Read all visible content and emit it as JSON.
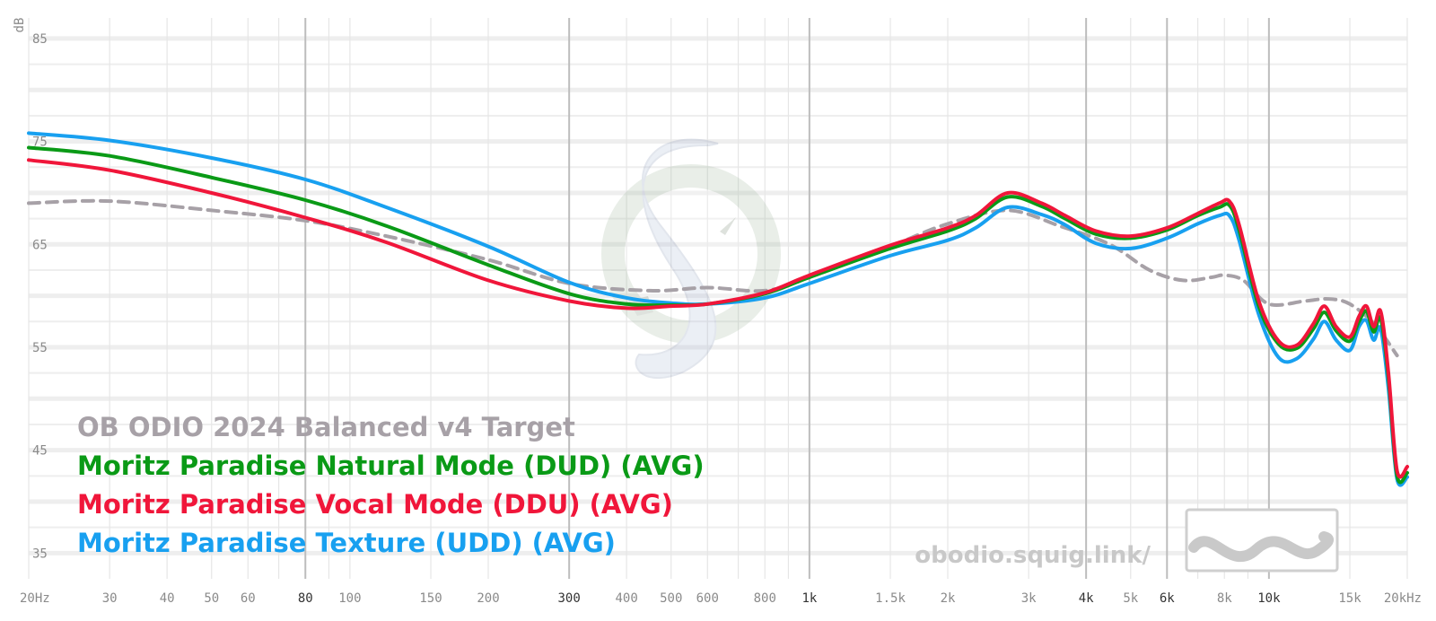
{
  "watermark": {
    "url": "obodio.squig.link/",
    "logo": "squiglink-wave-logo"
  },
  "colors": {
    "target": "#a7a1a7",
    "natural": "#0a9a16",
    "vocal": "#f0163a",
    "texture": "#18a0f0",
    "grid": "#e6e6e6",
    "grid_major": "#bdbdbd"
  },
  "chart_data": {
    "type": "line",
    "title": "",
    "xlabel": "",
    "ylabel": "dB",
    "x_scale": "log",
    "xlim": [
      20,
      20000
    ],
    "ylim": [
      32.5,
      87
    ],
    "grid": true,
    "legend_position": "bottom-left",
    "y_ticks": [
      85,
      75,
      65,
      55,
      45,
      35
    ],
    "x_ticks": [
      {
        "value": 20,
        "label": "20Hz",
        "strong": false
      },
      {
        "value": 30,
        "label": "30",
        "strong": false
      },
      {
        "value": 40,
        "label": "40",
        "strong": false
      },
      {
        "value": 50,
        "label": "50",
        "strong": false
      },
      {
        "value": 60,
        "label": "60",
        "strong": false
      },
      {
        "value": 80,
        "label": "80",
        "strong": true
      },
      {
        "value": 100,
        "label": "100",
        "strong": false
      },
      {
        "value": 150,
        "label": "150",
        "strong": false
      },
      {
        "value": 200,
        "label": "200",
        "strong": false
      },
      {
        "value": 300,
        "label": "300",
        "strong": true
      },
      {
        "value": 400,
        "label": "400",
        "strong": false
      },
      {
        "value": 500,
        "label": "500",
        "strong": false
      },
      {
        "value": 600,
        "label": "600",
        "strong": false
      },
      {
        "value": 800,
        "label": "800",
        "strong": false
      },
      {
        "value": 1000,
        "label": "1k",
        "strong": true
      },
      {
        "value": 1500,
        "label": "1.5k",
        "strong": false
      },
      {
        "value": 2000,
        "label": "2k",
        "strong": false
      },
      {
        "value": 3000,
        "label": "3k",
        "strong": false
      },
      {
        "value": 4000,
        "label": "4k",
        "strong": true
      },
      {
        "value": 5000,
        "label": "5k",
        "strong": false
      },
      {
        "value": 6000,
        "label": "6k",
        "strong": true
      },
      {
        "value": 8000,
        "label": "8k",
        "strong": false
      },
      {
        "value": 10000,
        "label": "10k",
        "strong": true
      },
      {
        "value": 15000,
        "label": "15k",
        "strong": false
      },
      {
        "value": 20000,
        "label": "20kHz",
        "strong": false
      }
    ],
    "series": [
      {
        "name": "OB ODIO 2024 Balanced v4 Target",
        "key": "target",
        "dashed": true,
        "x": [
          20,
          30,
          50,
          80,
          120,
          200,
          300,
          450,
          600,
          800,
          1000,
          1500,
          2000,
          2700,
          3500,
          4500,
          5500,
          6500,
          7500,
          8000,
          8800,
          10000,
          12000,
          13500,
          15000,
          17000,
          19000
        ],
        "y": [
          69.0,
          69.2,
          68.3,
          67.3,
          65.8,
          63.5,
          61.2,
          60.5,
          60.8,
          60.5,
          61.8,
          64.8,
          67.0,
          68.3,
          66.8,
          65.0,
          62.5,
          61.5,
          61.8,
          62.0,
          61.5,
          59.2,
          59.5,
          59.7,
          59.2,
          57.2,
          54.2
        ]
      },
      {
        "name": "Moritz Paradise Natural Mode (DUD) (AVG)",
        "key": "natural",
        "dashed": false,
        "x": [
          20,
          30,
          50,
          80,
          120,
          200,
          300,
          400,
          500,
          600,
          800,
          1000,
          1500,
          2000,
          2300,
          2700,
          3200,
          3600,
          4200,
          5000,
          6000,
          7000,
          7800,
          8200,
          8600,
          9500,
          10500,
          11500,
          12500,
          13200,
          14000,
          15000,
          15700,
          16300,
          16900,
          17500,
          18200,
          19000,
          20000
        ],
        "y": [
          74.4,
          73.6,
          71.5,
          69.3,
          66.8,
          63.0,
          60.2,
          59.2,
          59.1,
          59.2,
          60.2,
          61.8,
          64.6,
          66.3,
          67.5,
          69.6,
          68.7,
          67.5,
          66.0,
          65.6,
          66.4,
          67.8,
          68.6,
          68.8,
          66.5,
          59.0,
          55.3,
          54.9,
          56.8,
          58.4,
          56.6,
          55.6,
          57.5,
          58.5,
          56.5,
          57.8,
          52.0,
          42.5,
          42.8
        ]
      },
      {
        "name": "Moritz Paradise Vocal Mode (DDU) (AVG)",
        "key": "vocal",
        "dashed": false,
        "x": [
          20,
          30,
          50,
          80,
          120,
          200,
          300,
          400,
          500,
          600,
          800,
          1000,
          1500,
          2000,
          2300,
          2700,
          3200,
          3600,
          4200,
          5000,
          6000,
          7000,
          7800,
          8200,
          8600,
          9500,
          10500,
          11500,
          12500,
          13200,
          14000,
          15000,
          15700,
          16300,
          16900,
          17500,
          18200,
          19000,
          20000
        ],
        "y": [
          73.2,
          72.2,
          70.0,
          67.6,
          65.2,
          61.5,
          59.5,
          58.8,
          59.0,
          59.2,
          60.3,
          62.0,
          64.9,
          66.6,
          67.8,
          70.0,
          69.0,
          67.8,
          66.3,
          65.8,
          66.6,
          68.0,
          69.0,
          69.2,
          67.0,
          59.5,
          55.6,
          55.2,
          57.3,
          59.0,
          57.0,
          56.0,
          58.0,
          59.0,
          57.0,
          58.5,
          52.5,
          43.0,
          43.4
        ]
      },
      {
        "name": "Moritz Paradise Texture (UDD) (AVG)",
        "key": "texture",
        "dashed": false,
        "x": [
          20,
          30,
          50,
          80,
          120,
          200,
          300,
          400,
          500,
          600,
          800,
          1000,
          1500,
          2000,
          2300,
          2700,
          3200,
          3600,
          4200,
          5000,
          6000,
          7000,
          7800,
          8200,
          8600,
          9500,
          10500,
          11500,
          12500,
          13200,
          14000,
          15000,
          15700,
          16300,
          16900,
          17500,
          18200,
          19000,
          20000
        ],
        "y": [
          75.8,
          75.1,
          73.4,
          71.3,
          68.6,
          64.8,
          61.3,
          59.8,
          59.3,
          59.2,
          59.8,
          61.2,
          63.9,
          65.4,
          66.6,
          68.6,
          67.9,
          66.9,
          65.1,
          64.6,
          65.6,
          67.0,
          67.8,
          67.8,
          65.5,
          58.2,
          54.0,
          53.9,
          55.8,
          57.5,
          55.7,
          54.7,
          57.0,
          57.6,
          55.7,
          56.8,
          51.0,
          42.2,
          42.4
        ]
      }
    ]
  }
}
